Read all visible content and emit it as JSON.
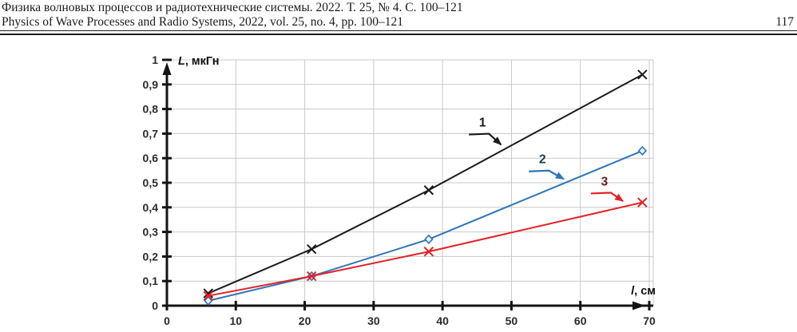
{
  "header": {
    "line1_ru": "Физика волновых процессов и радиотехнические системы. 2022. Т. 25, № 4. С. 100–121",
    "line2_en": "Physics of Wave Processes and Radio Systems, 2022, vol. 25, no. 4, pp. 100–121",
    "page_number": "117"
  },
  "chart_data": {
    "type": "line",
    "title": "",
    "xlabel": "l, см",
    "ylabel": "L, мкГн",
    "xlim": [
      0,
      70
    ],
    "ylim": [
      0,
      1
    ],
    "x_ticks": [
      0,
      10,
      20,
      30,
      40,
      50,
      60,
      70
    ],
    "y_ticks": [
      "0",
      "0,1",
      "0,2",
      "0,3",
      "0,4",
      "0,5",
      "0,6",
      "0,7",
      "0,8",
      "0,9",
      "1"
    ],
    "grid": true,
    "legend_position": "none",
    "series": [
      {
        "name": "1",
        "color": "#1a1a1a",
        "marker": "x",
        "x": [
          6,
          21,
          38,
          69
        ],
        "y": [
          0.05,
          0.23,
          0.47,
          0.94
        ]
      },
      {
        "name": "2",
        "color": "#2e75b6",
        "marker": "diamond",
        "x": [
          6,
          21,
          38,
          69
        ],
        "y": [
          0.02,
          0.12,
          0.27,
          0.63
        ]
      },
      {
        "name": "3",
        "color": "#e32126",
        "marker": "x",
        "x": [
          6,
          21,
          38,
          69
        ],
        "y": [
          0.04,
          0.12,
          0.22,
          0.42
        ]
      }
    ],
    "annotations": [
      {
        "text": "1",
        "text_color": "#1a1a1a",
        "arrow_color": "#1a1a1a",
        "label_x": 45.8,
        "label_y": 0.745,
        "tip_x": 48.5,
        "tip_y": 0.655
      },
      {
        "text": "2",
        "text_color": "#1e3d5c",
        "arrow_color": "#2e75b6",
        "label_x": 54.5,
        "label_y": 0.595,
        "tip_x": 57.6,
        "tip_y": 0.515
      },
      {
        "text": "3",
        "text_color": "#6b1a1a",
        "arrow_color": "#e32126",
        "label_x": 63.5,
        "label_y": 0.505,
        "tip_x": 66.2,
        "tip_y": 0.425
      }
    ]
  }
}
